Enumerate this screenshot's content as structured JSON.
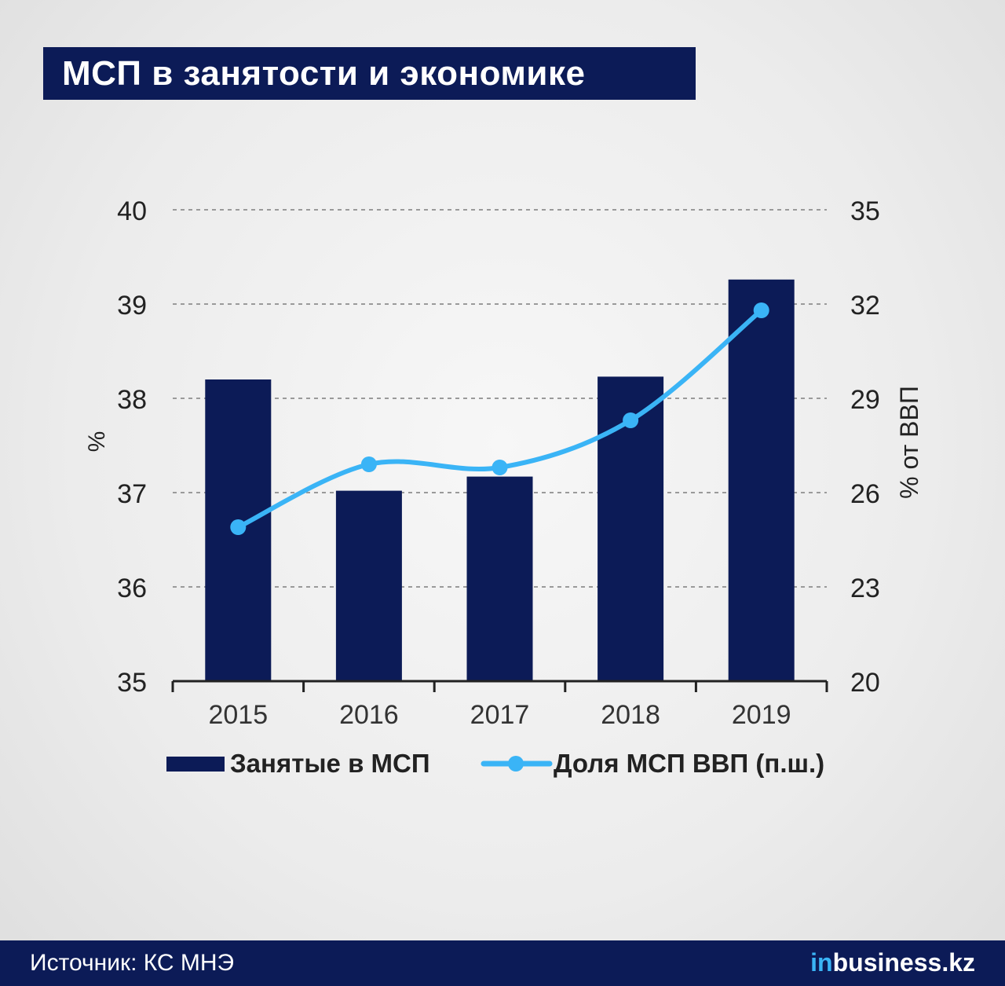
{
  "title": "МСП в занятости и экономике",
  "source": "Источник: КС МНЭ",
  "brand": {
    "accent": "in",
    "rest": "business.kz"
  },
  "colors": {
    "bar": "#0c1b57",
    "line": "#3ab4f6",
    "grid": "#9a9a9a",
    "axis": "#222222"
  },
  "chart_data": {
    "type": "bar",
    "categories": [
      "2015",
      "2016",
      "2017",
      "2018",
      "2019"
    ],
    "series": [
      {
        "name": "Занятые в МСП",
        "type": "bar",
        "axis": "left",
        "values": [
          38.2,
          37.02,
          37.17,
          38.23,
          39.26
        ]
      },
      {
        "name": "Доля МСП ВВП (п.ш.)",
        "type": "line",
        "axis": "right",
        "values": [
          24.9,
          26.9,
          26.8,
          28.3,
          31.8
        ]
      }
    ],
    "y_left": {
      "label": "%",
      "ylim": [
        35,
        40
      ],
      "ticks": [
        35,
        36,
        37,
        38,
        39,
        40
      ]
    },
    "y_right": {
      "label": "% от ВВП",
      "ylim": [
        20,
        35
      ],
      "ticks": [
        20,
        23,
        26,
        29,
        32,
        35
      ]
    },
    "grid": true,
    "legend": "bottom"
  }
}
